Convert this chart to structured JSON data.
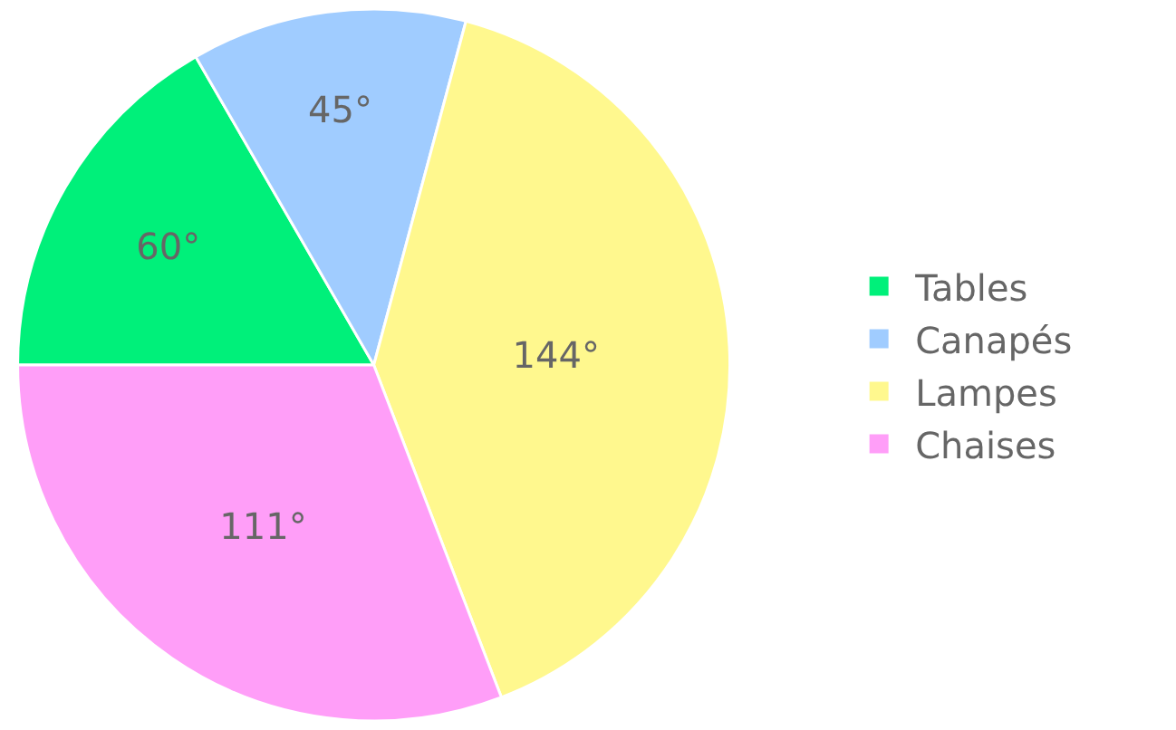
{
  "chart_data": {
    "type": "pie",
    "categories": [
      "Tables",
      "Canapés",
      "Lampes",
      "Chaises"
    ],
    "values": [
      60,
      45,
      144,
      111
    ],
    "value_labels": [
      "60°",
      "45°",
      "144°",
      "111°"
    ],
    "colors": [
      "#00f07a",
      "#a0ccff",
      "#fff88e",
      "#ff9ef8"
    ],
    "legend": "right"
  }
}
